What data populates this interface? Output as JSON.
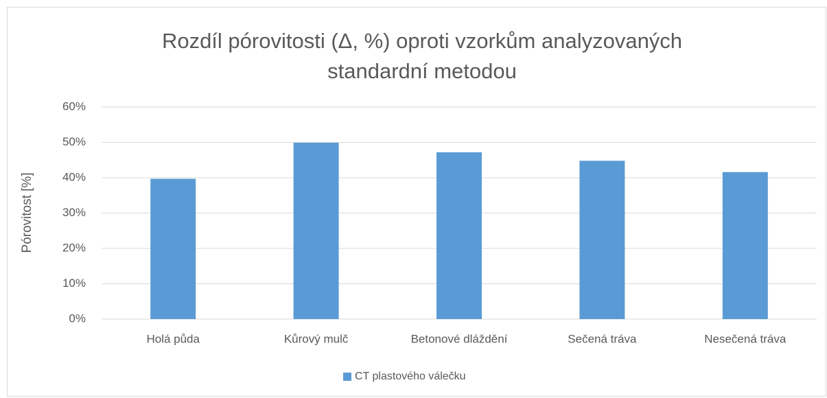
{
  "chart_data": {
    "type": "bar",
    "title": "Rozdíl pórovitosti (Δ, %) oproti vzorkům analyzovaných standardní metodou",
    "y_label": "Pórovitost [%]",
    "categories": [
      "Holá půda",
      "Kůrový mulč",
      "Betonové dláždění",
      "Sečená tráva",
      "Nesečená tráva"
    ],
    "series": [
      {
        "name": "CT plastového válečku",
        "color": "#5b9bd5",
        "values": [
          39.7,
          49.9,
          47.2,
          44.8,
          41.6
        ]
      }
    ],
    "ylim": [
      0,
      60
    ],
    "yticks": [
      {
        "value": 0,
        "label": "0%"
      },
      {
        "value": 10,
        "label": "10%"
      },
      {
        "value": 20,
        "label": "20%"
      },
      {
        "value": 30,
        "label": "30%"
      },
      {
        "value": 40,
        "label": "40%"
      },
      {
        "value": 50,
        "label": "50%"
      },
      {
        "value": 60,
        "label": "60%"
      }
    ],
    "grid": true,
    "legend": "bottom"
  }
}
